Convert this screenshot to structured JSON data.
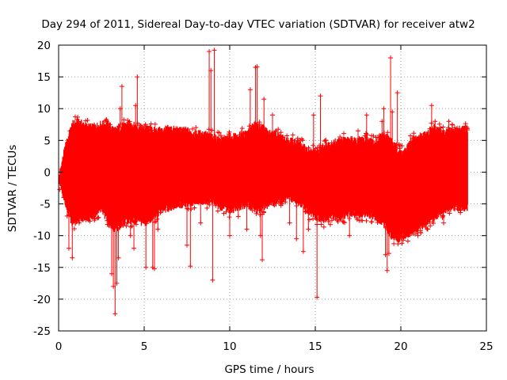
{
  "chart_data": {
    "type": "scatter",
    "title": "Day 294 of 2011, Sidereal Day-to-day VTEC variation (SDTVAR) for receiver atw2",
    "xlabel": "GPS time / hours",
    "ylabel": "SDTVAR / TECUs",
    "xlim": [
      0,
      25
    ],
    "ylim": [
      -25,
      20
    ],
    "x_ticks": [
      0,
      5,
      10,
      15,
      20,
      25
    ],
    "y_ticks": [
      -25,
      -20,
      -15,
      -10,
      -5,
      0,
      5,
      10,
      15,
      20
    ],
    "grid": true,
    "legend": "none",
    "series": [
      {
        "name": "SDTVAR",
        "color": "#ff0000",
        "marker": "plus",
        "envelope": {
          "x": [
            0,
            0.4,
            0.8,
            1.2,
            1.6,
            2.0,
            2.5,
            2.9,
            3.3,
            3.6,
            4.0,
            4.5,
            5.0,
            5.5,
            6.0,
            6.5,
            7.0,
            7.5,
            8.0,
            8.5,
            9.0,
            9.5,
            10.0,
            10.5,
            11.0,
            11.5,
            11.9,
            12.3,
            13.0,
            13.5,
            14.0,
            14.5,
            15.0,
            15.5,
            16.0,
            16.5,
            17.0,
            17.5,
            18.0,
            18.5,
            19.0,
            19.4,
            19.8,
            20.2,
            20.6,
            21.0,
            21.5,
            22.0,
            22.5,
            23.0,
            23.5,
            23.9
          ],
          "upper": [
            -1,
            4,
            7.5,
            7.8,
            7.2,
            7,
            7.5,
            7.5,
            6.5,
            7,
            7.5,
            7.2,
            6.8,
            6.5,
            6.5,
            6.8,
            6.5,
            6.5,
            6,
            6,
            5.5,
            5,
            5.5,
            5.5,
            6,
            7.5,
            7,
            6,
            5.5,
            5,
            4.5,
            3.5,
            3,
            4,
            4.5,
            5,
            5,
            5,
            5,
            4.5,
            6,
            5,
            3.5,
            3,
            5,
            5.5,
            6,
            7,
            6,
            6.5,
            6.8,
            6.5
          ],
          "lower": [
            -1,
            -5,
            -8,
            -7.5,
            -7,
            -7,
            -5.5,
            -8,
            -9,
            -8.5,
            -7.5,
            -7.5,
            -8,
            -7,
            -6,
            -5.5,
            -5,
            -5,
            -4.5,
            -4.5,
            -4.5,
            -5.5,
            -6,
            -5.5,
            -5,
            -6,
            -5.5,
            -5,
            -4.5,
            -4,
            -4.5,
            -6,
            -7,
            -7.5,
            -7,
            -7,
            -6.5,
            -6.5,
            -6.5,
            -7,
            -8,
            -10,
            -10.5,
            -10,
            -9.5,
            -9,
            -8,
            -7,
            -6,
            -5.5,
            -5.5,
            -5.5
          ]
        },
        "spikes": [
          [
            0.3,
            -4
          ],
          [
            0.6,
            -12
          ],
          [
            0.8,
            -13.5
          ],
          [
            1.2,
            -8
          ],
          [
            1.6,
            -7.5
          ],
          [
            2.4,
            -5.5
          ],
          [
            3.1,
            -16
          ],
          [
            3.2,
            -18
          ],
          [
            3.3,
            -22.3
          ],
          [
            3.4,
            -17.5
          ],
          [
            3.5,
            -13.5
          ],
          [
            3.6,
            10
          ],
          [
            3.7,
            13.5
          ],
          [
            3.9,
            4
          ],
          [
            4.2,
            -10
          ],
          [
            4.4,
            -12
          ],
          [
            4.5,
            10.5
          ],
          [
            4.6,
            15
          ],
          [
            4.9,
            6
          ],
          [
            5.1,
            -15
          ],
          [
            5.5,
            -15
          ],
          [
            5.6,
            -15.2
          ],
          [
            5.8,
            -9
          ],
          [
            7.5,
            -11.5
          ],
          [
            7.7,
            -14.8
          ],
          [
            8.3,
            -8
          ],
          [
            8.8,
            19
          ],
          [
            8.9,
            16
          ],
          [
            9.0,
            -17
          ],
          [
            9.1,
            19.2
          ],
          [
            10.0,
            -10
          ],
          [
            10.5,
            -7
          ],
          [
            11.0,
            -9
          ],
          [
            11.2,
            13
          ],
          [
            11.4,
            -5
          ],
          [
            11.5,
            16.5
          ],
          [
            11.6,
            16.6
          ],
          [
            11.8,
            -10
          ],
          [
            11.9,
            -13.8
          ],
          [
            12.0,
            11.5
          ],
          [
            12.1,
            4
          ],
          [
            12.5,
            9
          ],
          [
            13.5,
            -8
          ],
          [
            13.9,
            -10.5
          ],
          [
            14.3,
            -12.5
          ],
          [
            14.6,
            -9
          ],
          [
            14.9,
            9
          ],
          [
            15.1,
            -19.7
          ],
          [
            15.3,
            12
          ],
          [
            15.6,
            5
          ],
          [
            17.0,
            -10
          ],
          [
            17.5,
            6.5
          ],
          [
            18.0,
            9
          ],
          [
            18.5,
            -7
          ],
          [
            18.9,
            8
          ],
          [
            19.0,
            10
          ],
          [
            19.1,
            -13
          ],
          [
            19.2,
            -15.5
          ],
          [
            19.3,
            -12.8
          ],
          [
            19.4,
            18
          ],
          [
            19.5,
            9.5
          ],
          [
            19.8,
            12.5
          ],
          [
            20.5,
            -7
          ],
          [
            21.0,
            -10
          ],
          [
            21.5,
            6
          ],
          [
            21.8,
            10.5
          ],
          [
            22.0,
            8
          ],
          [
            22.5,
            -8
          ],
          [
            22.8,
            8
          ],
          [
            23.0,
            7.5
          ],
          [
            23.5,
            -6
          ],
          [
            23.8,
            5
          ]
        ]
      }
    ]
  }
}
